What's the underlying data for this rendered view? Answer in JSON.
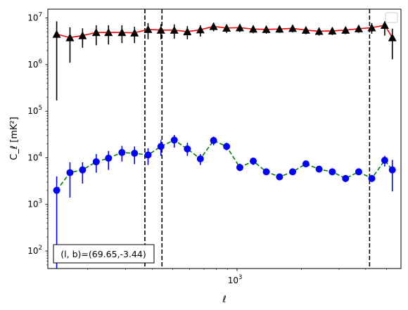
{
  "chart_data": {
    "type": "scatter",
    "xscale": "log",
    "yscale": "log",
    "xlim": [
      130,
      5850
    ],
    "ylim": [
      42,
      15500000
    ],
    "xlabel": "ℓ",
    "ylabel": "C_ℓ  [mK²]",
    "x_tick_labels": [
      {
        "value": 1000,
        "base": "10",
        "exp": "3"
      }
    ],
    "y_tick_labels": [
      {
        "value": 100,
        "base": "10",
        "exp": "2"
      },
      {
        "value": 1000,
        "base": "10",
        "exp": "3"
      },
      {
        "value": 10000,
        "base": "10",
        "exp": "4"
      },
      {
        "value": 100000,
        "base": "10",
        "exp": "5"
      },
      {
        "value": 1000000,
        "base": "10",
        "exp": "6"
      },
      {
        "value": 10000000,
        "base": "10",
        "exp": "7"
      }
    ],
    "grid": false,
    "legend": {
      "placement": "top-right",
      "entries": []
    },
    "annotation": {
      "text": "(l, b)=(69.65,-3.44)",
      "placement": "bottom-left"
    },
    "vlines": [
      {
        "x": 370,
        "color": "#000000",
        "style": "dashed"
      },
      {
        "x": 445,
        "color": "#000000",
        "style": "dashed"
      },
      {
        "x": 4170,
        "color": "#000000",
        "style": "dashed"
      }
    ],
    "series": [
      {
        "line_color": "#ff0000",
        "marker": "triangle",
        "marker_color": "#000000",
        "x": [
          143,
          165,
          189,
          219,
          250,
          289,
          331,
          383,
          440,
          508,
          585,
          673,
          776,
          893,
          1030,
          1190,
          1370,
          1580,
          1820,
          2100,
          2420,
          2790,
          3220,
          3710,
          4270,
          4910,
          5330
        ],
        "y": [
          4500000,
          3800000,
          4200000,
          4900000,
          4900000,
          4900000,
          4800000,
          5700000,
          5500000,
          5500000,
          5100000,
          5600000,
          6600000,
          6100000,
          6200000,
          5800000,
          5700000,
          5800000,
          6000000,
          5500000,
          5200000,
          5300000,
          5500000,
          5900000,
          6200000,
          7000000,
          3800000
        ],
        "y_low": [
          170000,
          1100000,
          2300000,
          2600000,
          2700000,
          2900000,
          2900000,
          3500000,
          3500000,
          3600000,
          3500000,
          4000000,
          5200000,
          4800000,
          5000000,
          4700000,
          4600000,
          4800000,
          4900000,
          4500000,
          4200000,
          4300000,
          4500000,
          4800000,
          4600000,
          4200000,
          1300000
        ],
        "y_high": [
          8500000,
          6300000,
          6000000,
          7000000,
          7000000,
          7000000,
          6500000,
          7800000,
          7400000,
          7300000,
          6700000,
          7000000,
          7900000,
          7200000,
          7300000,
          6800000,
          6700000,
          6700000,
          7000000,
          6400000,
          6200000,
          6200000,
          6400000,
          6900000,
          7800000,
          8500000,
          5900000
        ]
      },
      {
        "line_color": "#008000",
        "line_style": "dashed",
        "marker": "circle",
        "marker_color": "#0000ff",
        "x": [
          143,
          165,
          189,
          219,
          250,
          289,
          331,
          383,
          440,
          508,
          585,
          673,
          776,
          893,
          1030,
          1190,
          1370,
          1580,
          1820,
          2100,
          2420,
          2790,
          3220,
          3710,
          4270,
          4910,
          5330
        ],
        "y": [
          2000,
          4800,
          5500,
          8200,
          9800,
          13000,
          12500,
          11500,
          17500,
          24000,
          15500,
          9500,
          23500,
          17500,
          6200,
          8500,
          5000,
          3900,
          5000,
          7400,
          5700,
          5000,
          3600,
          5000,
          3600,
          8800,
          5500
        ],
        "y_low": [
          40,
          1400,
          2800,
          4800,
          5500,
          8300,
          7300,
          7000,
          11000,
          16500,
          11000,
          7000,
          18500,
          14500,
          5200,
          7000,
          4300,
          3300,
          4300,
          6600,
          4900,
          4300,
          3000,
          4300,
          3000,
          6500,
          1900
        ],
        "y_high": [
          4000,
          8000,
          8000,
          12000,
          14000,
          18000,
          17500,
          16000,
          24000,
          31000,
          21000,
          12000,
          28500,
          21000,
          7500,
          10000,
          5800,
          4500,
          5800,
          8200,
          6400,
          5800,
          4200,
          5700,
          4200,
          11000,
          9000
        ]
      }
    ]
  }
}
